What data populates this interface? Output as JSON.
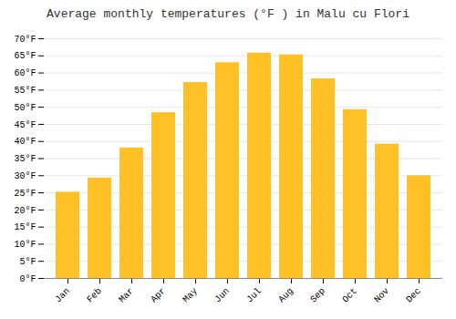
{
  "chart_data": {
    "type": "bar",
    "title": "Average monthly temperatures (°F ) in Malu cu Flori",
    "categories": [
      "Jan",
      "Feb",
      "Mar",
      "Apr",
      "May",
      "Jun",
      "Jul",
      "Aug",
      "Sep",
      "Oct",
      "Nov",
      "Dec"
    ],
    "values": [
      25.2,
      29.3,
      38.1,
      48.4,
      57.2,
      63.0,
      65.8,
      65.3,
      58.3,
      49.3,
      39.2,
      30.0
    ],
    "color": "#FFC125",
    "ylim": [
      0,
      70
    ],
    "yticks": [
      {
        "value": 0,
        "label": "0°F"
      },
      {
        "value": 5,
        "label": "5°F"
      },
      {
        "value": 10,
        "label": "10°F"
      },
      {
        "value": 15,
        "label": "15°F"
      },
      {
        "value": 20,
        "label": "20°F"
      },
      {
        "value": 25,
        "label": "25°F"
      },
      {
        "value": 30,
        "label": "30°F"
      },
      {
        "value": 35,
        "label": "35°F"
      },
      {
        "value": 40,
        "label": "40°F"
      },
      {
        "value": 45,
        "label": "45°F"
      },
      {
        "value": 50,
        "label": "50°F"
      },
      {
        "value": 55,
        "label": "55°F"
      },
      {
        "value": 60,
        "label": "60°F"
      },
      {
        "value": 65,
        "label": "65°F"
      },
      {
        "value": 70,
        "label": "70°F"
      }
    ],
    "grid": true
  }
}
